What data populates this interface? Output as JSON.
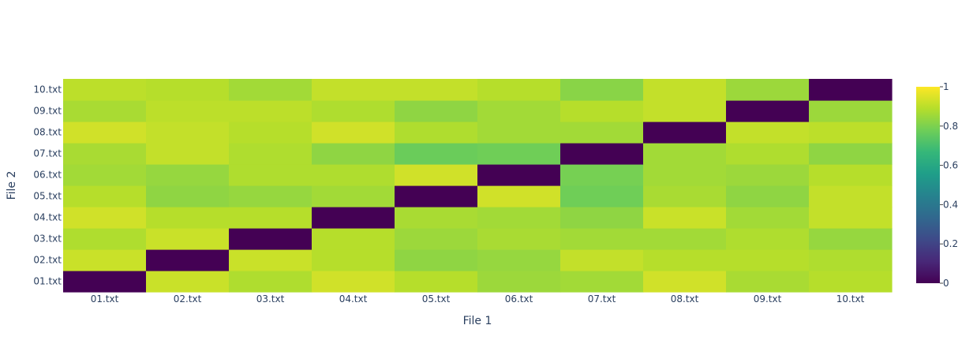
{
  "chart_data": {
    "type": "heatmap",
    "title": "",
    "xlabel": "File 1",
    "ylabel": "File 2",
    "x": [
      "01.txt",
      "02.txt",
      "03.txt",
      "04.txt",
      "05.txt",
      "06.txt",
      "07.txt",
      "08.txt",
      "09.txt",
      "10.txt"
    ],
    "y": [
      "01.txt",
      "02.txt",
      "03.txt",
      "04.txt",
      "05.txt",
      "06.txt",
      "07.txt",
      "08.txt",
      "09.txt",
      "10.txt"
    ],
    "z": [
      [
        0.0,
        0.92,
        0.88,
        0.93,
        0.89,
        0.85,
        0.86,
        0.93,
        0.87,
        0.89
      ],
      [
        0.92,
        0.0,
        0.92,
        0.89,
        0.83,
        0.84,
        0.91,
        0.89,
        0.89,
        0.88
      ],
      [
        0.88,
        0.92,
        0.0,
        0.89,
        0.85,
        0.87,
        0.86,
        0.86,
        0.88,
        0.84
      ],
      [
        0.93,
        0.89,
        0.89,
        0.0,
        0.87,
        0.86,
        0.83,
        0.92,
        0.86,
        0.91
      ],
      [
        0.89,
        0.83,
        0.84,
        0.86,
        0.0,
        0.93,
        0.78,
        0.87,
        0.83,
        0.91
      ],
      [
        0.86,
        0.84,
        0.88,
        0.88,
        0.93,
        0.0,
        0.79,
        0.86,
        0.85,
        0.89
      ],
      [
        0.87,
        0.91,
        0.88,
        0.83,
        0.77,
        0.78,
        0.0,
        0.86,
        0.88,
        0.83
      ],
      [
        0.93,
        0.91,
        0.89,
        0.93,
        0.88,
        0.86,
        0.86,
        0.0,
        0.91,
        0.9
      ],
      [
        0.87,
        0.9,
        0.9,
        0.88,
        0.83,
        0.86,
        0.89,
        0.91,
        0.0,
        0.85
      ],
      [
        0.9,
        0.89,
        0.86,
        0.91,
        0.91,
        0.89,
        0.82,
        0.91,
        0.85,
        0.0
      ]
    ],
    "zmin": 0,
    "zmax": 1,
    "colorscale": "Viridis",
    "colorbar_ticks": [
      "0",
      "0.2",
      "0.4",
      "0.6",
      "0.8",
      "1"
    ],
    "colorbar_tick_values": [
      0,
      0.2,
      0.4,
      0.6,
      0.8,
      1
    ]
  }
}
